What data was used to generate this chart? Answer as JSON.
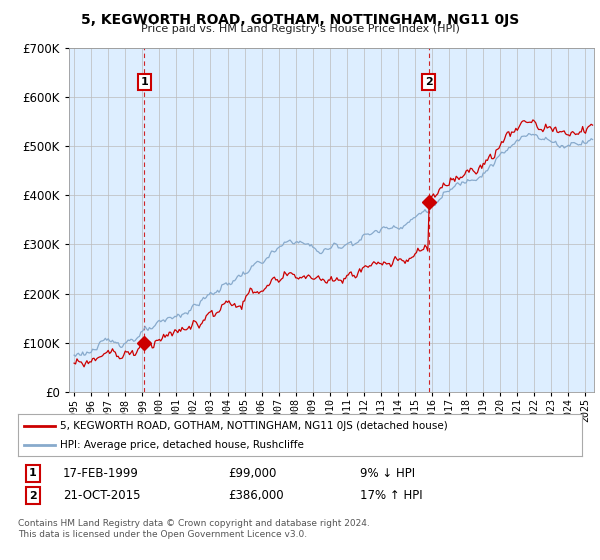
{
  "title": "5, KEGWORTH ROAD, GOTHAM, NOTTINGHAM, NG11 0JS",
  "subtitle": "Price paid vs. HM Land Registry's House Price Index (HPI)",
  "property_label": "5, KEGWORTH ROAD, GOTHAM, NOTTINGHAM, NG11 0JS (detached house)",
  "hpi_label": "HPI: Average price, detached house, Rushcliffe",
  "transaction1_date": "17-FEB-1999",
  "transaction1_price": "£99,000",
  "transaction1_hpi": "9% ↓ HPI",
  "transaction1_year": 1999.12,
  "transaction1_value": 99000,
  "transaction2_date": "21-OCT-2015",
  "transaction2_price": "£386,000",
  "transaction2_hpi": "17% ↑ HPI",
  "transaction2_year": 2015.8,
  "transaction2_value": 386000,
  "copyright": "Contains HM Land Registry data © Crown copyright and database right 2024.\nThis data is licensed under the Open Government Licence v3.0.",
  "property_color": "#cc0000",
  "hpi_color": "#88aacc",
  "vline_color": "#cc0000",
  "marker_color": "#cc0000",
  "chart_bg": "#ddeeff",
  "background_color": "#ffffff",
  "grid_color": "#bbbbbb",
  "ylim": [
    0,
    700000
  ],
  "yticks": [
    0,
    100000,
    200000,
    300000,
    400000,
    500000,
    600000,
    700000
  ],
  "xmin": 1994.7,
  "xmax": 2025.5
}
